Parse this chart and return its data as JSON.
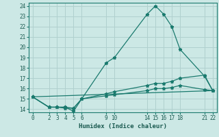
{
  "xlabel": "Humidex (Indice chaleur)",
  "background_color": "#cce8e5",
  "grid_color": "#b0d0ce",
  "line_color": "#1a7a6e",
  "spine_color": "#1a7a6e",
  "tick_color": "#1a5a50",
  "xlim": [
    -0.5,
    22.5
  ],
  "ylim": [
    13.7,
    24.3
  ],
  "xticks": [
    0,
    2,
    3,
    4,
    5,
    6,
    9,
    10,
    14,
    15,
    16,
    17,
    18,
    21,
    22
  ],
  "yticks": [
    14,
    15,
    16,
    17,
    18,
    19,
    20,
    21,
    22,
    23,
    24
  ],
  "lines": [
    {
      "x": [
        0,
        2,
        3,
        4,
        5,
        6,
        9,
        10,
        14,
        15,
        16,
        17,
        18,
        21,
        22
      ],
      "y": [
        15.2,
        14.2,
        14.2,
        14.2,
        13.8,
        15.0,
        18.5,
        19.0,
        23.2,
        24.0,
        23.2,
        22.0,
        19.8,
        17.2,
        15.8
      ]
    },
    {
      "x": [
        0,
        2,
        3,
        4,
        5,
        6,
        9,
        10,
        14,
        15,
        16,
        17,
        18,
        21,
        22
      ],
      "y": [
        15.2,
        14.2,
        14.2,
        14.1,
        14.1,
        15.0,
        15.5,
        15.7,
        16.3,
        16.5,
        16.5,
        16.7,
        17.0,
        17.3,
        15.8
      ]
    },
    {
      "x": [
        0,
        2,
        3,
        4,
        5,
        6,
        9,
        10,
        14,
        15,
        16,
        17,
        18,
        21,
        22
      ],
      "y": [
        15.2,
        14.2,
        14.2,
        14.2,
        14.1,
        15.0,
        15.3,
        15.4,
        15.8,
        16.0,
        16.0,
        16.1,
        16.3,
        15.9,
        15.8
      ]
    },
    {
      "x": [
        0,
        22
      ],
      "y": [
        15.2,
        15.8
      ]
    }
  ]
}
